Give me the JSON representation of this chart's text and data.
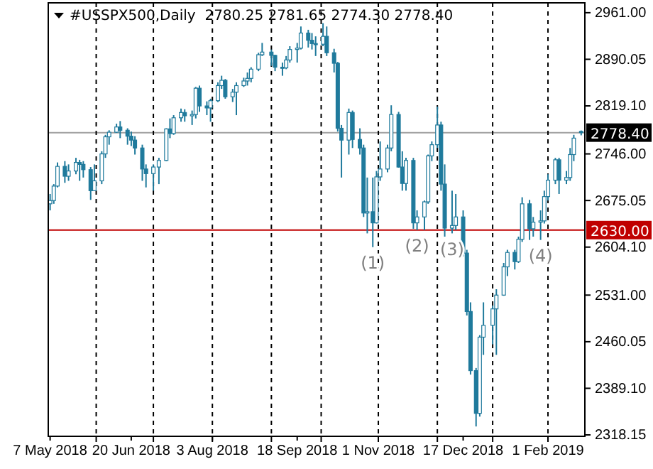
{
  "chart_data": {
    "type": "candlestick",
    "title": "#USSPX500,Daily  2780.25 2781.65 2774.30 2778.40",
    "color": "#1f7a9c",
    "x": [
      "2018-05-07",
      "2018-05-09",
      "2018-05-11",
      "2018-05-15",
      "2018-05-17",
      "2018-05-21",
      "2018-05-23",
      "2018-05-25",
      "2018-05-29",
      "2018-05-31",
      "2018-06-04",
      "2018-06-06",
      "2018-06-08",
      "2018-06-12",
      "2018-06-14",
      "2018-06-18",
      "2018-06-20",
      "2018-06-22",
      "2018-06-26",
      "2018-06-28",
      "2018-07-02",
      "2018-07-05",
      "2018-07-09",
      "2018-07-11",
      "2018-07-13",
      "2018-07-17",
      "2018-07-19",
      "2018-07-23",
      "2018-07-25",
      "2018-07-27",
      "2018-07-31",
      "2018-08-02",
      "2018-08-06",
      "2018-08-08",
      "2018-08-10",
      "2018-08-14",
      "2018-08-16",
      "2018-08-20",
      "2018-08-22",
      "2018-08-24",
      "2018-08-28",
      "2018-08-30",
      "2018-09-04",
      "2018-09-06",
      "2018-09-10",
      "2018-09-12",
      "2018-09-14",
      "2018-09-18",
      "2018-09-20",
      "2018-09-24",
      "2018-09-26",
      "2018-09-28",
      "2018-10-02",
      "2018-10-04",
      "2018-10-08",
      "2018-10-10",
      "2018-10-12",
      "2018-10-16",
      "2018-10-18",
      "2018-10-22",
      "2018-10-24",
      "2018-10-26",
      "2018-10-29",
      "2018-10-31",
      "2018-11-02",
      "2018-11-06",
      "2018-11-08",
      "2018-11-12",
      "2018-11-14",
      "2018-11-16",
      "2018-11-20",
      "2018-11-22",
      "2018-11-26",
      "2018-11-28",
      "2018-11-30",
      "2018-12-03",
      "2018-12-05",
      "2018-12-07",
      "2018-12-11",
      "2018-12-13",
      "2018-12-17",
      "2018-12-19",
      "2018-12-21",
      "2018-12-24",
      "2018-12-26",
      "2018-12-28",
      "2019-01-02",
      "2019-01-04",
      "2019-01-08",
      "2019-01-10",
      "2019-01-14",
      "2019-01-16",
      "2019-01-18",
      "2019-01-22",
      "2019-01-24",
      "2019-01-28",
      "2019-01-30",
      "2019-02-01",
      "2019-02-05",
      "2019-02-07",
      "2019-02-11",
      "2019-02-13",
      "2019-02-15",
      "2019-02-19"
    ],
    "ohlc": [
      [
        2670,
        2685,
        2660,
        2675
      ],
      [
        2675,
        2700,
        2670,
        2697
      ],
      [
        2697,
        2733,
        2695,
        2727
      ],
      [
        2727,
        2735,
        2702,
        2712
      ],
      [
        2712,
        2730,
        2705,
        2720
      ],
      [
        2720,
        2740,
        2715,
        2733
      ],
      [
        2733,
        2737,
        2705,
        2730
      ],
      [
        2730,
        2735,
        2710,
        2722
      ],
      [
        2722,
        2726,
        2676,
        2690
      ],
      [
        2690,
        2730,
        2690,
        2705
      ],
      [
        2705,
        2750,
        2700,
        2746
      ],
      [
        2746,
        2775,
        2740,
        2772
      ],
      [
        2772,
        2782,
        2760,
        2779
      ],
      [
        2779,
        2792,
        2778,
        2787
      ],
      [
        2787,
        2796,
        2770,
        2782
      ],
      [
        2782,
        2785,
        2760,
        2773
      ],
      [
        2773,
        2780,
        2758,
        2767
      ],
      [
        2767,
        2773,
        2745,
        2755
      ],
      [
        2755,
        2760,
        2705,
        2723
      ],
      [
        2723,
        2730,
        2695,
        2716
      ],
      [
        2716,
        2730,
        2690,
        2726
      ],
      [
        2726,
        2740,
        2700,
        2736
      ],
      [
        2736,
        2785,
        2735,
        2784
      ],
      [
        2784,
        2800,
        2770,
        2777
      ],
      [
        2777,
        2805,
        2775,
        2801
      ],
      [
        2801,
        2815,
        2795,
        2809
      ],
      [
        2809,
        2814,
        2795,
        2804
      ],
      [
        2804,
        2812,
        2790,
        2806
      ],
      [
        2806,
        2848,
        2800,
        2846
      ],
      [
        2846,
        2850,
        2810,
        2819
      ],
      [
        2819,
        2826,
        2805,
        2816
      ],
      [
        2816,
        2830,
        2795,
        2827
      ],
      [
        2827,
        2855,
        2825,
        2850
      ],
      [
        2850,
        2865,
        2845,
        2858
      ],
      [
        2858,
        2860,
        2830,
        2833
      ],
      [
        2833,
        2845,
        2825,
        2840
      ],
      [
        2840,
        2855,
        2805,
        2850
      ],
      [
        2850,
        2862,
        2848,
        2857
      ],
      [
        2857,
        2870,
        2850,
        2861
      ],
      [
        2861,
        2878,
        2855,
        2875
      ],
      [
        2875,
        2900,
        2872,
        2897
      ],
      [
        2897,
        2915,
        2895,
        2901
      ],
      [
        2901,
        2905,
        2880,
        2896
      ],
      [
        2896,
        2897,
        2872,
        2878
      ],
      [
        2878,
        2885,
        2865,
        2877
      ],
      [
        2877,
        2895,
        2875,
        2889
      ],
      [
        2889,
        2910,
        2885,
        2905
      ],
      [
        2905,
        2915,
        2885,
        2907
      ],
      [
        2907,
        2940,
        2905,
        2930
      ],
      [
        2930,
        2935,
        2908,
        2919
      ],
      [
        2919,
        2930,
        2905,
        2914
      ],
      [
        2914,
        2925,
        2895,
        2913
      ],
      [
        2913,
        2945,
        2910,
        2925
      ],
      [
        2925,
        2940,
        2895,
        2900
      ],
      [
        2900,
        2906,
        2870,
        2884
      ],
      [
        2884,
        2886,
        2780,
        2785
      ],
      [
        2785,
        2790,
        2710,
        2767
      ],
      [
        2767,
        2815,
        2745,
        2809
      ],
      [
        2809,
        2812,
        2755,
        2768
      ],
      [
        2768,
        2785,
        2745,
        2755
      ],
      [
        2755,
        2760,
        2650,
        2656
      ],
      [
        2656,
        2710,
        2625,
        2658
      ],
      [
        2658,
        2710,
        2604,
        2641
      ],
      [
        2641,
        2720,
        2640,
        2711
      ],
      [
        2711,
        2765,
        2705,
        2723
      ],
      [
        2723,
        2760,
        2718,
        2755
      ],
      [
        2755,
        2820,
        2750,
        2806
      ],
      [
        2806,
        2810,
        2725,
        2726
      ],
      [
        2726,
        2750,
        2690,
        2701
      ],
      [
        2701,
        2740,
        2690,
        2736
      ],
      [
        2736,
        2740,
        2632,
        2641
      ],
      [
        2641,
        2660,
        2630,
        2650
      ],
      [
        2650,
        2675,
        2630,
        2673
      ],
      [
        2673,
        2745,
        2670,
        2743
      ],
      [
        2743,
        2765,
        2735,
        2760
      ],
      [
        2760,
        2818,
        2755,
        2790
      ],
      [
        2790,
        2795,
        2690,
        2700
      ],
      [
        2700,
        2730,
        2620,
        2633
      ],
      [
        2633,
        2690,
        2625,
        2637
      ],
      [
        2637,
        2685,
        2630,
        2650
      ],
      [
        2650,
        2660,
        2590,
        2595
      ],
      [
        2595,
        2600,
        2500,
        2506
      ],
      [
        2506,
        2520,
        2410,
        2416
      ],
      [
        2416,
        2420,
        2331,
        2351
      ],
      [
        2351,
        2470,
        2346,
        2467
      ],
      [
        2467,
        2520,
        2440,
        2485
      ],
      [
        2485,
        2515,
        2456,
        2510
      ],
      [
        2510,
        2540,
        2440,
        2531
      ],
      [
        2531,
        2580,
        2530,
        2574
      ],
      [
        2574,
        2600,
        2560,
        2596
      ],
      [
        2596,
        2600,
        2570,
        2582
      ],
      [
        2582,
        2620,
        2580,
        2616
      ],
      [
        2616,
        2680,
        2612,
        2670
      ],
      [
        2670,
        2676,
        2615,
        2632
      ],
      [
        2632,
        2650,
        2620,
        2642
      ],
      [
        2642,
        2660,
        2615,
        2644
      ],
      [
        2644,
        2690,
        2640,
        2681
      ],
      [
        2681,
        2715,
        2675,
        2706
      ],
      [
        2706,
        2740,
        2700,
        2737
      ],
      [
        2737,
        2740,
        2685,
        2706
      ],
      [
        2706,
        2720,
        2700,
        2710
      ],
      [
        2710,
        2755,
        2705,
        2745
      ],
      [
        2745,
        2775,
        2735,
        2770
      ],
      [
        2780.25,
        2781.65,
        2774.3,
        2778.4
      ]
    ],
    "xlim": [
      "2018-05-06",
      "2019-02-21"
    ],
    "xticks": [
      {
        "value": "2018-05-07",
        "label": "7 May 2018"
      },
      {
        "value": "2018-06-20",
        "label": "20 Jun 2018"
      },
      {
        "value": "2018-08-03",
        "label": "3 Aug 2018"
      },
      {
        "value": "2018-09-18",
        "label": "18 Sep 2018"
      },
      {
        "value": "2018-11-01",
        "label": "1 Nov 2018"
      },
      {
        "value": "2018-12-17",
        "label": "17 Dec 2018"
      },
      {
        "value": "2019-02-01",
        "label": "1 Feb 2019"
      }
    ],
    "ylim": [
      2316,
      2976
    ],
    "yticks": [
      {
        "value": 2961,
        "label": "2961.00"
      },
      {
        "value": 2890.05,
        "label": "2890.05"
      },
      {
        "value": 2819.1,
        "label": "2819.10"
      },
      {
        "value": 2746,
        "label": "2746.00"
      },
      {
        "value": 2675.05,
        "label": "2675.05"
      },
      {
        "value": 2604.1,
        "label": "2604.10"
      },
      {
        "value": 2531,
        "label": "2531.00"
      },
      {
        "value": 2460.05,
        "label": "2460.05"
      },
      {
        "value": 2389.1,
        "label": "2389.10"
      },
      {
        "value": 2318.15,
        "label": "2318.15"
      }
    ],
    "grid": false,
    "ref_lines": [
      {
        "axis": "y",
        "value": 2778.4,
        "label": "2778.40",
        "color": "#a0a0a0",
        "line_style": "solid"
      },
      {
        "axis": "y",
        "value": 2630,
        "label": "2630.00",
        "color": "#c00000",
        "line_style": "solid"
      },
      {
        "axis": "x",
        "value": "2018-06-01",
        "color": "#000000",
        "line_style": "dashed"
      },
      {
        "axis": "x",
        "value": "2018-07-02",
        "color": "#000000",
        "line_style": "dashed"
      },
      {
        "axis": "x",
        "value": "2018-08-03",
        "color": "#000000",
        "line_style": "dashed"
      },
      {
        "axis": "x",
        "value": "2018-09-04",
        "color": "#000000",
        "line_style": "dashed"
      },
      {
        "axis": "x",
        "value": "2018-10-01",
        "color": "#000000",
        "line_style": "dashed"
      },
      {
        "axis": "x",
        "value": "2018-11-01",
        "color": "#000000",
        "line_style": "dashed"
      },
      {
        "axis": "x",
        "value": "2018-12-03",
        "color": "#000000",
        "line_style": "dashed"
      },
      {
        "axis": "x",
        "value": "2019-01-02",
        "color": "#000000",
        "line_style": "dashed"
      },
      {
        "axis": "x",
        "value": "2019-02-01",
        "color": "#000000",
        "line_style": "dashed"
      }
    ],
    "annotations": [
      {
        "text": "(1)",
        "x": "2018-10-29",
        "y": 2604
      },
      {
        "text": "(2)",
        "x": "2018-11-22",
        "y": 2630
      },
      {
        "text": "(3)",
        "x": "2018-12-11",
        "y": 2625
      },
      {
        "text": "(4)",
        "x": "2019-01-28",
        "y": 2615
      }
    ]
  }
}
